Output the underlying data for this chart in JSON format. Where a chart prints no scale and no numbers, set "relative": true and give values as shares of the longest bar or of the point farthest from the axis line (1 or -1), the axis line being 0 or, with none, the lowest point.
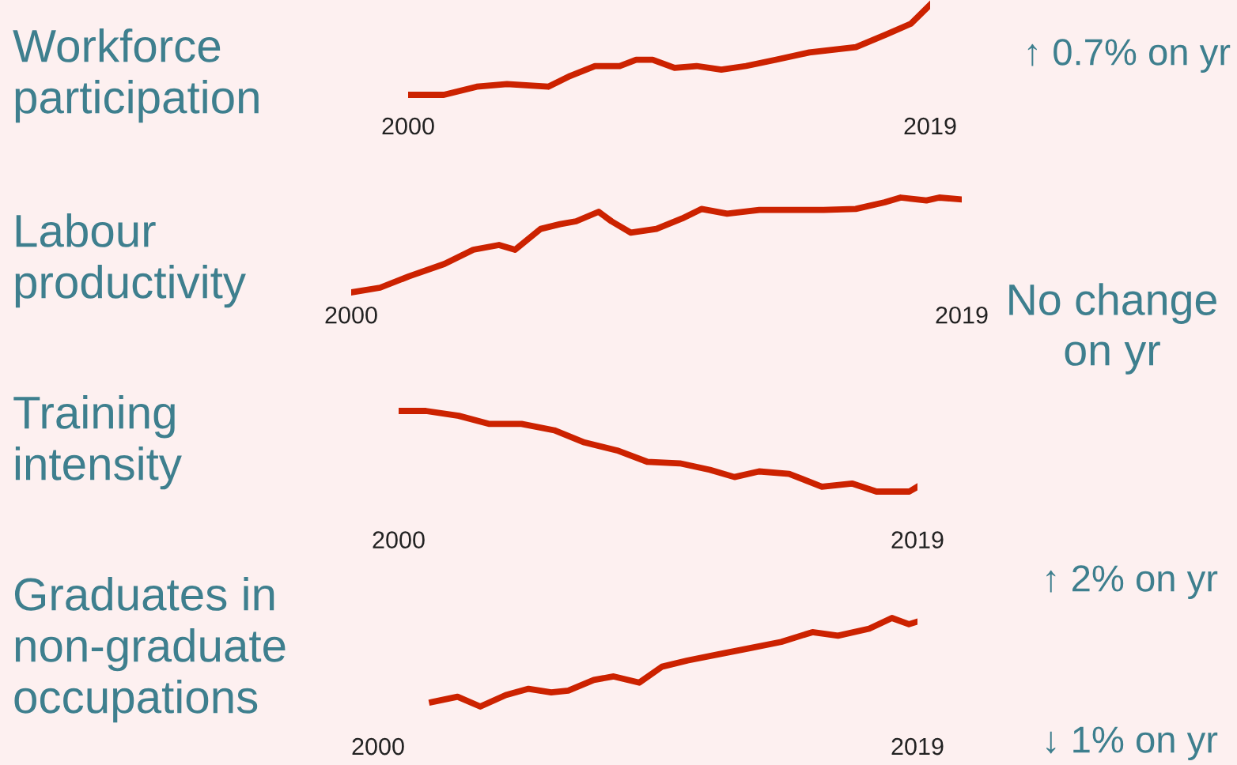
{
  "chart_data": [
    {
      "type": "line",
      "title": "Workforce\nparticipation",
      "relative": true,
      "xlim": [
        2000,
        2019
      ],
      "xticks": [
        2000,
        2019
      ],
      "tick_labels": "x",
      "grid": false,
      "legend": false,
      "annotations": [
        "↑ 0.7% on yr"
      ],
      "series": [
        {
          "color": "#cc2200",
          "x": [
            2000,
            2001.3,
            2002.5,
            2003.6,
            2005.1,
            2005.9,
            2006.8,
            2007.7,
            2008.3,
            2008.9,
            2009.7,
            2010.5,
            2011.4,
            2012.3,
            2013.4,
            2014.6,
            2016.3,
            2017.4,
            2018.3,
            2019
          ],
          "values": [
            0,
            0,
            0.09,
            0.12,
            0.09,
            0.21,
            0.32,
            0.32,
            0.39,
            0.39,
            0.3,
            0.32,
            0.28,
            0.32,
            0.39,
            0.47,
            0.53,
            0.67,
            0.79,
            1
          ]
        }
      ]
    },
    {
      "type": "line",
      "title": "Labour\nproductivity",
      "relative": true,
      "xlim": [
        2000,
        2019
      ],
      "xticks": [
        2000,
        2019
      ],
      "tick_labels": "x",
      "grid": false,
      "legend": false,
      "annotations": [
        "No change\non yr"
      ],
      "series": [
        {
          "color": "#cc2200",
          "x": [
            2000,
            2000.9,
            2001.8,
            2002.9,
            2003.8,
            2004.6,
            2005.1,
            2005.9,
            2006.5,
            2007,
            2007.7,
            2008.1,
            2008.7,
            2009.5,
            2010.3,
            2010.9,
            2011.7,
            2012.7,
            2013.7,
            2014.7,
            2015.7,
            2016.6,
            2017.1,
            2017.9,
            2018.3,
            2019
          ],
          "values": [
            0,
            0.05,
            0.17,
            0.3,
            0.45,
            0.5,
            0.45,
            0.67,
            0.72,
            0.75,
            0.85,
            0.75,
            0.63,
            0.67,
            0.78,
            0.88,
            0.83,
            0.87,
            0.87,
            0.87,
            0.88,
            0.95,
            1,
            0.97,
            1,
            0.98
          ]
        }
      ]
    },
    {
      "type": "line",
      "title": "Training\nintensity",
      "relative": true,
      "xlim": [
        2000,
        2019
      ],
      "xticks": [
        2000,
        2019
      ],
      "tick_labels": "x",
      "grid": false,
      "legend": false,
      "annotations": [
        "↑ 2% on yr"
      ],
      "series": [
        {
          "color": "#cc2200",
          "x": [
            2000,
            2001,
            2002.2,
            2003.3,
            2004.5,
            2005.7,
            2006.8,
            2008,
            2009.1,
            2010.3,
            2011.4,
            2012.3,
            2013.2,
            2014.3,
            2015.5,
            2016.6,
            2017.5,
            2018.7,
            2019
          ],
          "values": [
            1,
            1,
            0.94,
            0.84,
            0.84,
            0.76,
            0.61,
            0.51,
            0.37,
            0.35,
            0.27,
            0.18,
            0.25,
            0.22,
            0.06,
            0.1,
            0,
            0,
            0.06
          ]
        }
      ]
    },
    {
      "type": "line",
      "title": "Graduates in\nnon-graduate\noccupations",
      "relative": true,
      "xlim": [
        2000,
        2019
      ],
      "xticks": [
        2000,
        2019
      ],
      "tick_labels": "x",
      "grid": false,
      "legend": false,
      "annotations": [
        "↓ 1% on yr"
      ],
      "series": [
        {
          "color": "#cc2200",
          "x": [
            2001.9,
            2002.8,
            2003.6,
            2004.5,
            2005.3,
            2006.1,
            2006.7,
            2007.6,
            2008.3,
            2009.2,
            2010,
            2010.9,
            2012,
            2013.1,
            2014.2,
            2015.3,
            2016.2,
            2017.3,
            2018.1,
            2018.7,
            2019
          ],
          "values": [
            0.05,
            0.11,
            0,
            0.13,
            0.2,
            0.16,
            0.18,
            0.3,
            0.34,
            0.27,
            0.45,
            0.52,
            0.59,
            0.66,
            0.73,
            0.84,
            0.8,
            0.88,
            1,
            0.93,
            0.96
          ]
        }
      ]
    }
  ]
}
